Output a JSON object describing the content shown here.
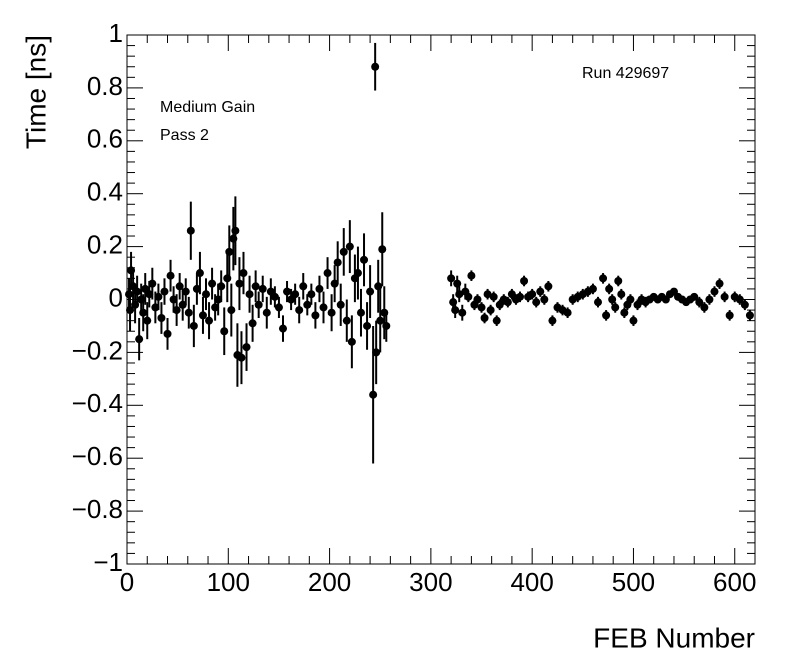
{
  "chart_data": {
    "type": "errorbar",
    "x_label": "FEB Number",
    "y_label": "Time [ns]",
    "annotations": [
      "Run 429697",
      "Medium Gain",
      "Pass 2"
    ],
    "xlim": [
      0,
      620
    ],
    "xticks": [
      0,
      100,
      200,
      300,
      400,
      500,
      600
    ],
    "ylim": [
      -1,
      1
    ],
    "yticks": [
      {
        "value": -1,
        "label": "−1"
      },
      {
        "value": -0.8,
        "label": "−0.8"
      },
      {
        "value": -0.6,
        "label": "−0.6"
      },
      {
        "value": -0.4,
        "label": "−0.4"
      },
      {
        "value": -0.2,
        "label": "−0.2"
      },
      0,
      0.2,
      0.4,
      0.6,
      0.8,
      1
    ],
    "color": "#000000",
    "x": [
      2,
      3,
      4,
      6,
      8,
      10,
      12,
      14,
      16,
      18,
      20,
      22,
      25,
      28,
      31,
      34,
      37,
      40,
      43,
      46,
      49,
      52,
      55,
      58,
      61,
      63,
      66,
      69,
      72,
      75,
      78,
      81,
      84,
      87,
      90,
      93,
      96,
      99,
      101,
      103,
      105,
      107,
      109,
      111,
      113,
      115,
      118,
      121,
      124,
      127,
      130,
      134,
      138,
      142,
      146,
      150,
      154,
      158,
      162,
      166,
      170,
      174,
      178,
      182,
      186,
      190,
      194,
      198,
      202,
      205,
      208,
      211,
      214,
      217,
      220,
      222,
      225,
      228,
      231,
      234,
      237,
      240,
      243,
      245,
      246,
      248,
      250,
      252,
      254,
      256,
      320,
      322,
      324,
      326,
      328,
      331,
      334,
      337,
      340,
      343,
      346,
      350,
      353,
      356,
      359,
      362,
      365,
      368,
      372,
      376,
      380,
      384,
      388,
      392,
      396,
      400,
      404,
      408,
      412,
      416,
      420,
      425,
      430,
      435,
      440,
      445,
      450,
      455,
      460,
      465,
      470,
      473,
      476,
      479,
      482,
      485,
      488,
      491,
      494,
      497,
      500,
      504,
      508,
      512,
      516,
      520,
      524,
      528,
      532,
      536,
      540,
      544,
      548,
      552,
      556,
      560,
      565,
      570,
      575,
      580,
      585,
      590,
      595,
      600,
      605,
      610,
      615
    ],
    "values": [
      0.02,
      -0.04,
      0.11,
      0.05,
      -0.02,
      0.03,
      -0.15,
      0.0,
      -0.05,
      0.04,
      -0.08,
      0.02,
      0.06,
      -0.03,
      0.01,
      -0.07,
      0.03,
      -0.13,
      0.09,
      0.0,
      -0.04,
      0.05,
      -0.02,
      0.03,
      -0.05,
      0.26,
      -0.1,
      0.04,
      0.1,
      -0.06,
      0.02,
      -0.08,
      0.06,
      -0.03,
      0.0,
      0.05,
      -0.12,
      0.08,
      0.18,
      -0.04,
      0.23,
      0.26,
      -0.21,
      0.06,
      -0.22,
      0.1,
      -0.18,
      0.02,
      -0.09,
      0.05,
      -0.02,
      0.04,
      -0.05,
      0.03,
      0.01,
      -0.03,
      -0.11,
      0.03,
      0.0,
      0.02,
      -0.04,
      0.05,
      -0.02,
      0.02,
      -0.06,
      0.04,
      -0.03,
      0.1,
      -0.05,
      0.06,
      0.14,
      -0.02,
      0.18,
      -0.08,
      0.2,
      -0.16,
      0.08,
      0.1,
      -0.05,
      0.15,
      -0.1,
      0.03,
      -0.36,
      0.88,
      -0.2,
      0.05,
      -0.08,
      0.19,
      -0.05,
      -0.1,
      0.08,
      -0.01,
      -0.04,
      0.06,
      0.02,
      -0.05,
      0.03,
      0.01,
      0.09,
      -0.02,
      0.0,
      -0.03,
      -0.07,
      0.02,
      -0.04,
      0.01,
      -0.08,
      -0.02,
      0.0,
      -0.01,
      0.02,
      0.0,
      0.01,
      0.07,
      0.01,
      0.02,
      -0.01,
      0.03,
      0.0,
      0.05,
      -0.08,
      -0.03,
      -0.04,
      -0.05,
      0.0,
      0.01,
      0.02,
      0.03,
      0.04,
      -0.01,
      0.08,
      -0.06,
      0.04,
      0.0,
      -0.03,
      0.07,
      0.02,
      -0.05,
      -0.02,
      0.0,
      -0.08,
      -0.02,
      0.0,
      -0.01,
      0.0,
      0.01,
      0.0,
      0.01,
      0.0,
      0.02,
      0.03,
      0.01,
      0.0,
      -0.01,
      0.0,
      0.01,
      -0.01,
      -0.03,
      0.0,
      0.03,
      0.06,
      0.01,
      -0.06,
      0.01,
      0.0,
      -0.02,
      -0.06
    ],
    "errors": [
      0.06,
      0.08,
      0.07,
      0.06,
      0.07,
      0.06,
      0.08,
      0.06,
      0.07,
      0.06,
      0.07,
      0.05,
      0.06,
      0.06,
      0.05,
      0.06,
      0.05,
      0.06,
      0.06,
      0.05,
      0.06,
      0.05,
      0.06,
      0.05,
      0.06,
      0.11,
      0.08,
      0.06,
      0.08,
      0.07,
      0.06,
      0.07,
      0.06,
      0.05,
      0.06,
      0.06,
      0.09,
      0.09,
      0.1,
      0.1,
      0.12,
      0.13,
      0.12,
      0.1,
      0.1,
      0.08,
      0.09,
      0.07,
      0.07,
      0.06,
      0.05,
      0.05,
      0.06,
      0.05,
      0.04,
      0.04,
      0.05,
      0.04,
      0.04,
      0.04,
      0.05,
      0.05,
      0.04,
      0.04,
      0.05,
      0.05,
      0.06,
      0.06,
      0.07,
      0.07,
      0.08,
      0.08,
      0.09,
      0.08,
      0.1,
      0.1,
      0.09,
      0.1,
      0.09,
      0.1,
      0.09,
      0.1,
      0.26,
      0.09,
      0.12,
      0.1,
      0.12,
      0.14,
      0.1,
      0.06,
      0.03,
      0.03,
      0.03,
      0.03,
      0.03,
      0.03,
      0.03,
      0.02,
      0.02,
      0.02,
      0.02,
      0.02,
      0.02,
      0.02,
      0.02,
      0.02,
      0.02,
      0.02,
      0.02,
      0.02,
      0.02,
      0.02,
      0.02,
      0.02,
      0.02,
      0.02,
      0.02,
      0.02,
      0.02,
      0.02,
      0.02,
      0.02,
      0.02,
      0.02,
      0.02,
      0.02,
      0.02,
      0.02,
      0.02,
      0.02,
      0.02,
      0.02,
      0.02,
      0.02,
      0.02,
      0.02,
      0.02,
      0.02,
      0.02,
      0.02,
      0.02,
      0.02,
      0.02,
      0.02,
      0.01,
      0.01,
      0.01,
      0.01,
      0.01,
      0.01,
      0.01,
      0.01,
      0.01,
      0.01,
      0.01,
      0.01,
      0.02,
      0.02,
      0.02,
      0.02,
      0.02,
      0.02,
      0.02,
      0.02,
      0.02,
      0.02,
      0.02
    ]
  }
}
